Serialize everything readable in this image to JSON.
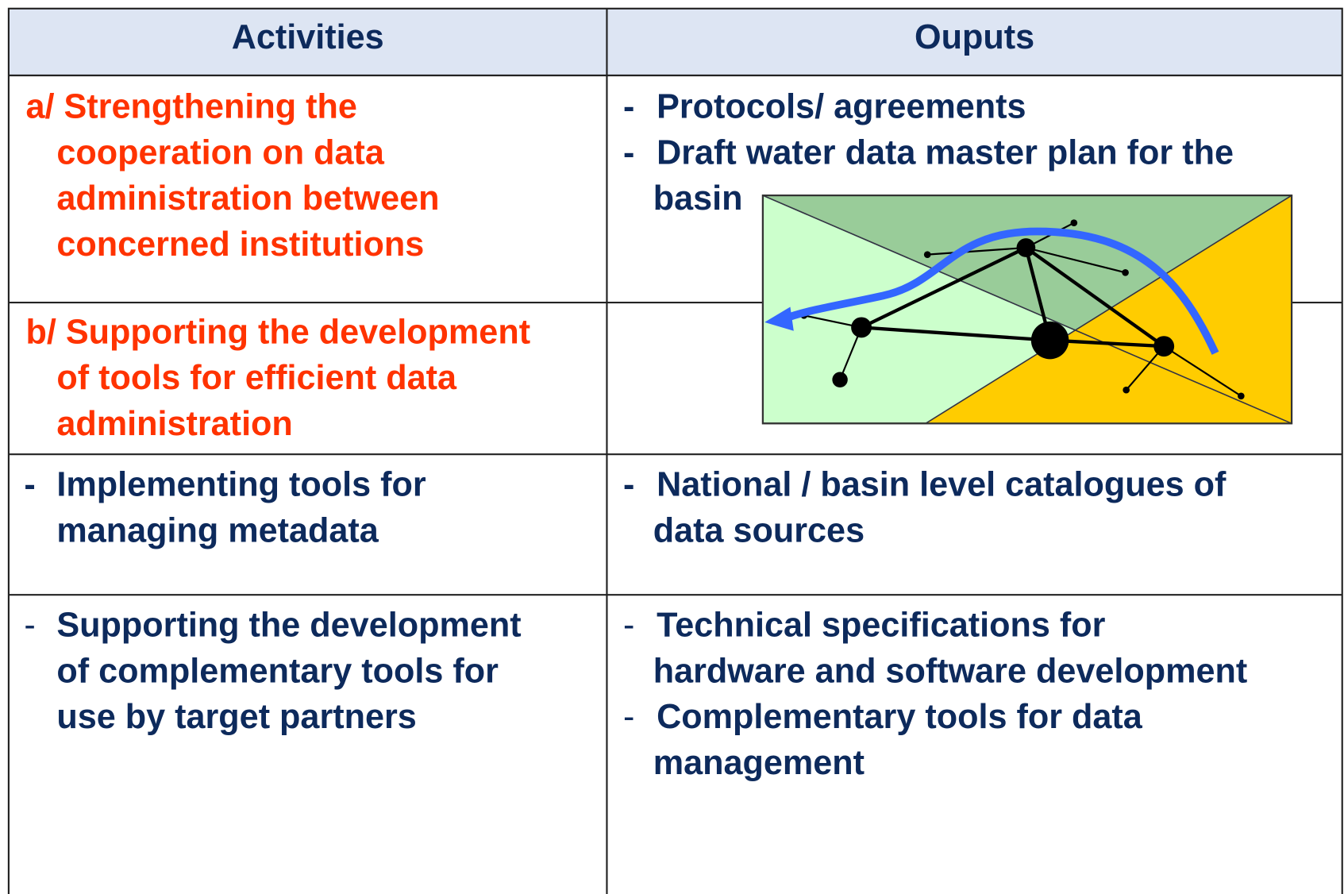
{
  "table": {
    "header": [
      "Activities",
      "Ouputs"
    ],
    "rows": [
      {
        "activity": {
          "lines": [
            "a/ Strengthening the",
            "cooperation on data",
            "administration between",
            "concerned institutions"
          ]
        },
        "outputs": [
          {
            "bullet": "-",
            "lines": [
              "Protocols/  agreements"
            ]
          },
          {
            "bullet": "-",
            "lines": [
              "Draft water data master plan for the",
              "basin"
            ]
          }
        ]
      },
      {
        "activity": {
          "lines": [
            "b/ Supporting the development",
            "of tools for efficient data",
            "administration"
          ]
        },
        "outputs": []
      },
      {
        "activity": {
          "bullet": "-",
          "lines": [
            "Implementing tools for",
            "managing metadata"
          ]
        },
        "outputs": [
          {
            "bullet": "-",
            "lines": [
              "National / basin level catalogues of",
              "data sources"
            ]
          }
        ]
      },
      {
        "activity": {
          "bullet": "-",
          "lines": [
            "Supporting the development",
            "of complementary tools for",
            "use by target partners"
          ]
        },
        "outputs": [
          {
            "bullet": "-",
            "lines": [
              "Technical specifications for",
              "hardware and software development"
            ]
          },
          {
            "bullet": "-",
            "lines": [
              "Complementary tools for data",
              "management"
            ]
          }
        ]
      }
    ]
  }
}
